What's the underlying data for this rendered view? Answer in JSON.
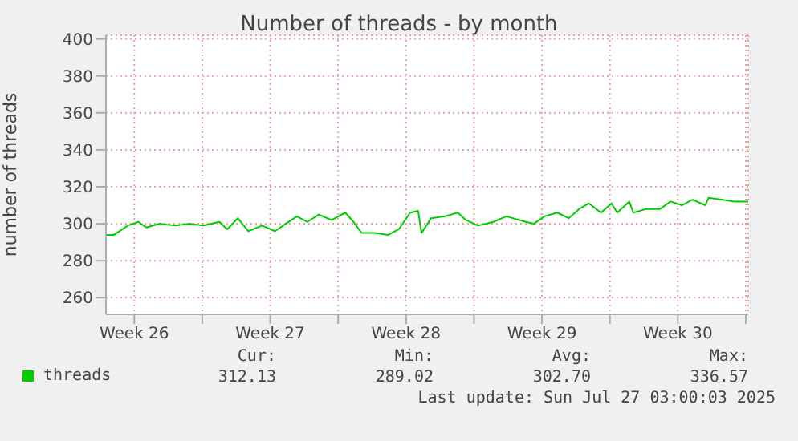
{
  "chart_data": {
    "type": "line",
    "title": "Number of threads - by month",
    "ylabel": "number of threads",
    "x": [
      "2025-06-24T01:00",
      "2025-06-24T11:00",
      "2025-06-25T04:00",
      "2025-06-25T17:00",
      "2025-06-26T03:00",
      "2025-06-26T19:00",
      "2025-06-27T15:00",
      "2025-06-28T08:00",
      "2025-06-29T01:00",
      "2025-06-29T21:00",
      "2025-06-30T07:00",
      "2025-06-30T20:00",
      "2025-07-01T09:00",
      "2025-07-02T02:00",
      "2025-07-02T18:00",
      "2025-07-03T04:00",
      "2025-07-03T21:00",
      "2025-07-04T10:00",
      "2025-07-05T00:00",
      "2025-07-05T16:00",
      "2025-07-06T09:00",
      "2025-07-06T19:00",
      "2025-07-07T05:00",
      "2025-07-07T21:00",
      "2025-07-08T14:00",
      "2025-07-09T03:00",
      "2025-07-09T17:00",
      "2025-07-10T03:00",
      "2025-07-10T07:00",
      "2025-07-10T19:00",
      "2025-07-11T12:00",
      "2025-07-12T04:00",
      "2025-07-12T14:00",
      "2025-07-13T05:00",
      "2025-07-14T00:00",
      "2025-07-14T16:00",
      "2025-07-15T16:00",
      "2025-07-16T02:00",
      "2025-07-16T15:00",
      "2025-07-17T07:00",
      "2025-07-17T21:00",
      "2025-07-18T10:00",
      "2025-07-18T22:00",
      "2025-07-19T13:00",
      "2025-07-20T02:00",
      "2025-07-20T09:00",
      "2025-07-21T00:00",
      "2025-07-21T05:00",
      "2025-07-21T21:00",
      "2025-07-22T14:00",
      "2025-07-23T03:00",
      "2025-07-23T17:00",
      "2025-07-24T06:00",
      "2025-07-24T22:00",
      "2025-07-25T02:00",
      "2025-07-25T18:00",
      "2025-07-26T10:00",
      "2025-07-27T03:00"
    ],
    "series": [
      {
        "name": "threads",
        "color": "#00cc00",
        "values": [
          294,
          294,
          299,
          301,
          298,
          300,
          299,
          300,
          299,
          301,
          297,
          303,
          296,
          299,
          296,
          299,
          304,
          301,
          305,
          302,
          306,
          301,
          295,
          295,
          294,
          297,
          306,
          307,
          295,
          303,
          304,
          306,
          302,
          299,
          301,
          304,
          301,
          300,
          304,
          306,
          303,
          308,
          311,
          306,
          311,
          306,
          312,
          306,
          308,
          308,
          312,
          310,
          313,
          310,
          314,
          313,
          312,
          312
        ]
      }
    ],
    "xlim": [
      "2025-06-24T01:00",
      "2025-07-27T03:00"
    ],
    "xticks": [
      {
        "value": "2025-06-25T12:00",
        "label": "Week 26"
      },
      {
        "value": "2025-06-29T00:00",
        "label": null
      },
      {
        "value": "2025-07-02T12:00",
        "label": "Week 27"
      },
      {
        "value": "2025-07-06T00:00",
        "label": null
      },
      {
        "value": "2025-07-09T12:00",
        "label": "Week 28"
      },
      {
        "value": "2025-07-13T00:00",
        "label": null
      },
      {
        "value": "2025-07-16T12:00",
        "label": "Week 29"
      },
      {
        "value": "2025-07-20T00:00",
        "label": null
      },
      {
        "value": "2025-07-23T12:00",
        "label": "Week 30"
      },
      {
        "value": "2025-07-27T00:00",
        "label": null
      }
    ],
    "ylim": [
      251,
      402
    ],
    "yticks": [
      260,
      280,
      300,
      320,
      340,
      360,
      380,
      400
    ],
    "grid": true,
    "legend": "bottom left",
    "marker": "none",
    "line_style": "solid",
    "annotations": [
      "Cur:",
      "Min:",
      "Avg:",
      "Max:",
      "312.13",
      "289.02",
      "302.70",
      "336.57",
      "Last update: Sun Jul 27 03:00:03 2025"
    ]
  }
}
